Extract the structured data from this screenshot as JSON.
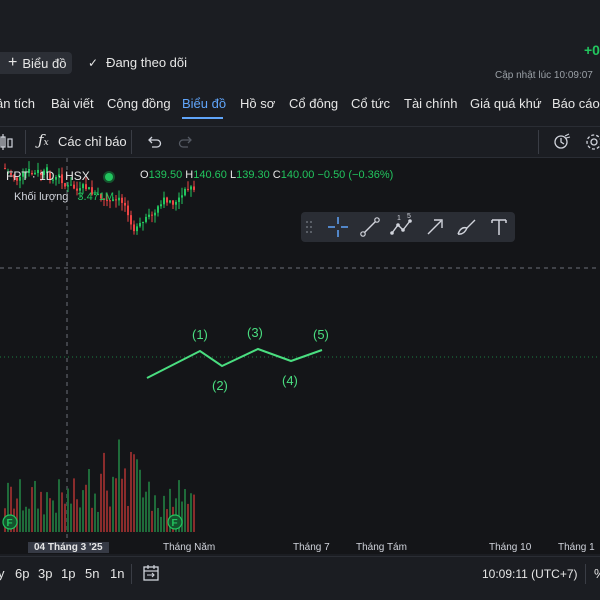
{
  "header": {
    "chart_button_label": "Biểu đồ",
    "watching_label": "Đang theo dõi",
    "change_value": "+0",
    "updated_text": "Cập nhật lúc  10:09:07"
  },
  "tabs": [
    {
      "label": "ân tích"
    },
    {
      "label": "Bài viết"
    },
    {
      "label": "Cộng đồng"
    },
    {
      "label": "Biểu đồ"
    },
    {
      "label": "Hồ sơ"
    },
    {
      "label": "Cổ đông"
    },
    {
      "label": "Cổ tức"
    },
    {
      "label": "Tài chính"
    },
    {
      "label": "Giá quá khứ"
    },
    {
      "label": "Báo cáo"
    }
  ],
  "toolbar": {
    "indicators_label": "Các chỉ báo"
  },
  "legend": {
    "symbol": "FPT · 1D · HSX",
    "open_label": "O",
    "open": "139.50",
    "high_label": "H",
    "high": "140.60",
    "low_label": "L",
    "low": "139.30",
    "close_label": "C",
    "close": "140.00",
    "change": "−0.50 (−0.36%)",
    "volume_label": "Khối lượng",
    "volume": "3.471M"
  },
  "waves": [
    "(1)",
    "(2)",
    "(3)",
    "(4)",
    "(5)"
  ],
  "xaxis": {
    "highlight": "04 Tháng 3 '25",
    "labels": [
      "Tháng Năm",
      "Tháng 7",
      "Tháng Tám",
      "Tháng 10",
      "Tháng 1"
    ]
  },
  "bottom": {
    "ranges": [
      "y",
      "6p",
      "3p",
      "1p",
      "5n",
      "1n"
    ],
    "clock": "10:09:11 (UTC+7)"
  },
  "colors": {
    "up": "#22c55e",
    "down": "#ef4444",
    "accent": "#60a5fa"
  }
}
